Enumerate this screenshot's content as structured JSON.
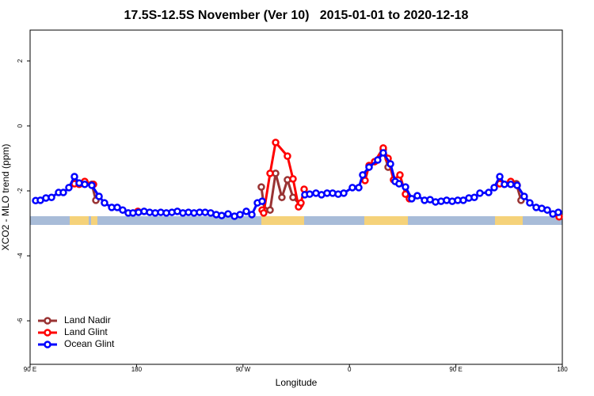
{
  "chart_data": {
    "type": "line",
    "title": "17.5S-12.5S November (Ver 10)   2015-01-01 to 2020-12-18",
    "x_label": "Longitude",
    "y_label": "XCO2 - MLO trend (ppm)",
    "xlim": [
      90,
      540
    ],
    "ylim": [
      -7.34,
      2.95
    ],
    "xticks": [
      {
        "value": 90,
        "label": "90 E"
      },
      {
        "value": 180,
        "label": "180"
      },
      {
        "value": 270,
        "label": "90 W"
      },
      {
        "value": 360,
        "label": "0"
      },
      {
        "value": 450,
        "label": "90 E"
      },
      {
        "value": 540,
        "label": "180"
      }
    ],
    "yticks": [
      2,
      0,
      -2,
      -4,
      -6
    ],
    "legend": "bottom-left",
    "series": [
      {
        "name": "Land Nadir",
        "color": "#993333",
        "x": [
          142.2,
          145.6,
          null,
          285.5,
          288.2,
          292.9,
          297.6,
          302.9,
          307.6,
          312.3,
          318.3,
          null,
          388.6,
          392.7,
          null,
          501.1,
          505.1
        ],
        "values": [
          -1.8,
          -2.29,
          null,
          -1.88,
          -2.59,
          -2.59,
          -1.46,
          -2.2,
          -1.66,
          -2.2,
          -2.42,
          null,
          -0.73,
          -1.27,
          null,
          -1.78,
          -2.29
        ]
      },
      {
        "name": "Land Glint",
        "color": "#ff0000",
        "x": [
          127.5,
          131.5,
          136.2,
          143.6,
          null,
          181.1,
          null,
          286.2,
          287.5,
          292.9,
          297.6,
          307.6,
          312.3,
          317,
          319,
          321.7,
          null,
          373.2,
          376.6,
          381.3,
          388.6,
          392.7,
          397.3,
          402.7,
          407.4,
          410.7,
          null,
          487.1,
          496.4,
          501.8,
          null,
          537.3
        ],
        "values": [
          -1.78,
          -1.8,
          -1.71,
          -1.8,
          null,
          -2.63,
          null,
          -2.59,
          -2.68,
          -1.46,
          -0.51,
          -0.93,
          -1.63,
          -2.49,
          -2.37,
          -1.95,
          null,
          -1.68,
          -1.22,
          -1.1,
          -0.68,
          -1.0,
          -1.66,
          -1.51,
          -2.1,
          -2.24,
          null,
          -1.78,
          -1.71,
          -1.83,
          null,
          -2.8
        ]
      },
      {
        "name": "Ocean Glint",
        "color": "#0000ff",
        "x": [
          94.7,
          98.7,
          103.4,
          108.1,
          114.1,
          118.1,
          122.8,
          127.5,
          131.5,
          136.2,
          142.2,
          148.3,
          152.9,
          159,
          163.7,
          168.3,
          173,
          177,
          181.7,
          186.4,
          191.1,
          195.8,
          200.5,
          205.2,
          209.9,
          214.5,
          219.2,
          223.9,
          228.6,
          233.3,
          238,
          242.7,
          247.4,
          252,
          257.4,
          262.8,
          267.5,
          272.8,
          277.5,
          282.2,
          286.2,
          null,
          322.3,
          326.4,
          331.7,
          336.4,
          341.1,
          345.8,
          350.5,
          355.2,
          362.5,
          367.9,
          371.2,
          376.6,
          383.9,
          388.6,
          394.7,
          398.7,
          402,
          407.4,
          412.7,
          417.4,
          423.5,
          428.2,
          432.8,
          437.5,
          442.2,
          446.9,
          451.6,
          456.3,
          461,
          465.6,
          470.3,
          477.7,
          482.4,
          487.1,
          491.1,
          496.4,
          501.8,
          507.8,
          512.5,
          517.9,
          522.6,
          527.3,
          532,
          536.6
        ],
        "values": [
          -2.3,
          -2.29,
          -2.22,
          -2.2,
          -2.05,
          -2.05,
          -1.9,
          -1.56,
          -1.76,
          -1.8,
          -1.83,
          -2.17,
          -2.37,
          -2.51,
          -2.51,
          -2.59,
          -2.68,
          -2.68,
          -2.66,
          -2.63,
          -2.66,
          -2.68,
          -2.66,
          -2.68,
          -2.66,
          -2.63,
          -2.68,
          -2.66,
          -2.68,
          -2.66,
          -2.66,
          -2.68,
          -2.73,
          -2.76,
          -2.71,
          -2.78,
          -2.73,
          -2.63,
          -2.73,
          -2.37,
          -2.32,
          null,
          -2.12,
          -2.1,
          -2.07,
          -2.12,
          -2.07,
          -2.07,
          -2.1,
          -2.07,
          -1.9,
          -1.9,
          -1.51,
          -1.27,
          -1.05,
          -0.83,
          -1.17,
          -1.71,
          -1.78,
          -1.88,
          -2.24,
          -2.15,
          -2.29,
          -2.27,
          -2.34,
          -2.32,
          -2.29,
          -2.32,
          -2.29,
          -2.29,
          -2.22,
          -2.2,
          -2.07,
          -2.05,
          -1.9,
          -1.56,
          -1.8,
          -1.8,
          -1.83,
          -2.17,
          -2.37,
          -2.51,
          -2.54,
          -2.59,
          -2.71,
          -2.66
        ]
      }
    ]
  }
}
